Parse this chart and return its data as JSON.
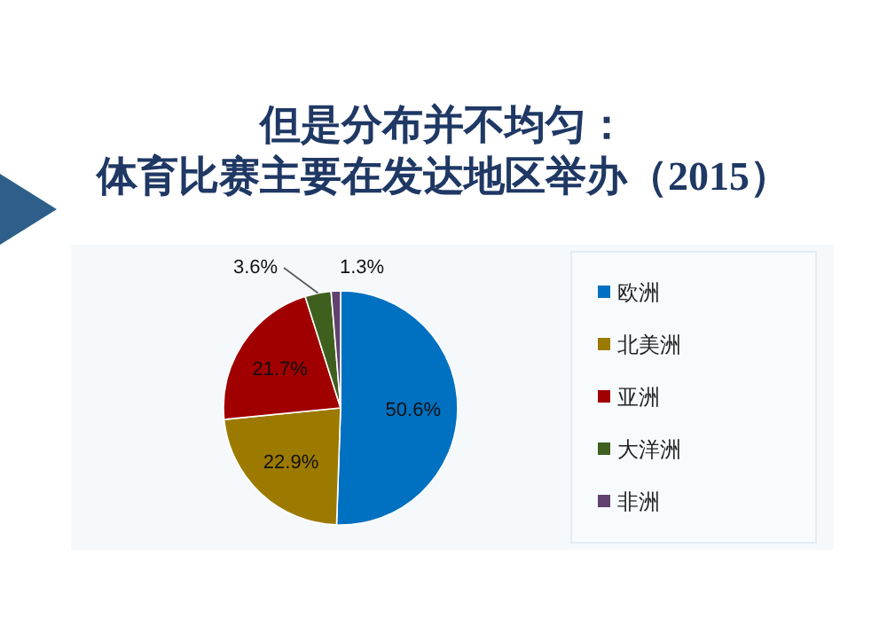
{
  "chart_data": {
    "type": "pie",
    "title": "但是分布并不均匀：",
    "subtitle": "体育比赛主要在发达地区举办（2015）",
    "categories": [
      "欧洲",
      "北美洲",
      "亚洲",
      "大洋洲",
      "非洲"
    ],
    "values": [
      50.6,
      22.9,
      21.7,
      3.6,
      1.3
    ],
    "value_labels": [
      "50.6%",
      "22.9%",
      "21.7%",
      "3.6%",
      "1.3%"
    ],
    "colors": [
      "#0070c0",
      "#9c7a00",
      "#a00000",
      "#3f5f1f",
      "#60416f"
    ],
    "legend": "right"
  }
}
